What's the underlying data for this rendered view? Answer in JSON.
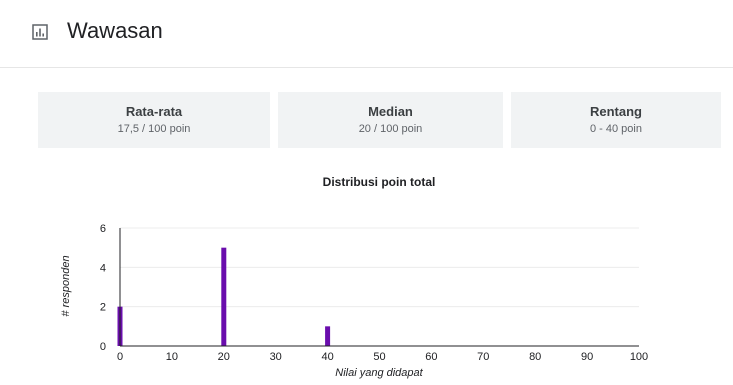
{
  "header": {
    "title": "Wawasan",
    "icon": "chart-bars-icon"
  },
  "stats": [
    {
      "title": "Rata-rata",
      "value": "17,5 / 100 poin"
    },
    {
      "title": "Median",
      "value": "20 / 100 poin"
    },
    {
      "title": "Rentang",
      "value": "0 - 40 poin"
    }
  ],
  "colors": {
    "bar": "#6a0dad",
    "card_bg": "#f1f3f4",
    "grid": "#ececec",
    "axis": "#202124"
  },
  "chart_data": {
    "type": "bar",
    "title": "Distribusi poin total",
    "xlabel": "Nilai yang didapat",
    "ylabel": "# responden",
    "x": [
      0,
      20,
      40
    ],
    "values": [
      2,
      5,
      1
    ],
    "xlim": [
      0,
      100
    ],
    "ylim": [
      0,
      6
    ],
    "xticks": [
      0,
      10,
      20,
      30,
      40,
      50,
      60,
      70,
      80,
      90,
      100
    ],
    "yticks": [
      0,
      2,
      4,
      6
    ],
    "grid": true,
    "legend": "none"
  }
}
